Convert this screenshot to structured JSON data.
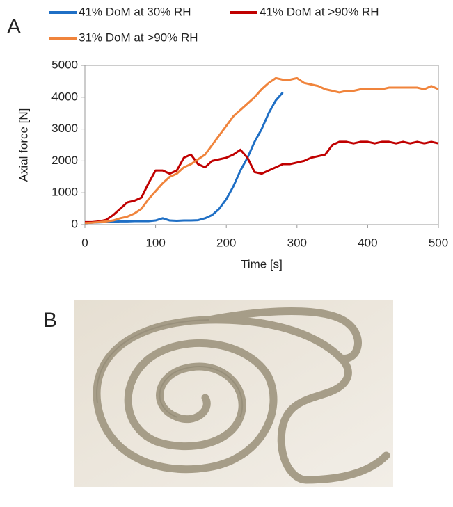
{
  "panel_labels": [
    "A",
    "B"
  ],
  "chart_data": {
    "type": "line",
    "x_label": "Time [s]",
    "y_label": "Axial force [N]",
    "x": [
      0,
      10,
      20,
      30,
      40,
      50,
      60,
      70,
      80,
      90,
      100,
      110,
      120,
      130,
      140,
      150,
      160,
      170,
      180,
      190,
      200,
      210,
      220,
      230,
      240,
      250,
      260,
      270,
      280,
      290,
      300,
      310,
      320,
      330,
      340,
      350,
      360,
      370,
      380,
      390,
      400,
      410,
      420,
      430,
      440,
      450,
      460,
      470,
      480,
      490,
      500
    ],
    "series": [
      {
        "name": "41% DoM at 30% RH",
        "color": "#1f6fc5",
        "values": [
          50,
          60,
          70,
          80,
          90,
          100,
          100,
          110,
          110,
          110,
          130,
          200,
          130,
          120,
          130,
          130,
          140,
          200,
          300,
          500,
          800,
          1200,
          1700,
          2100,
          2600,
          3000,
          3500,
          3900,
          4150,
          null,
          null,
          null,
          null,
          null,
          null,
          null,
          null,
          null,
          null,
          null,
          null,
          null,
          null,
          null,
          null,
          null,
          null,
          null,
          null,
          null,
          null
        ]
      },
      {
        "name": "41% DoM at >90% RH",
        "color": "#c00000",
        "values": [
          80,
          80,
          100,
          150,
          300,
          500,
          700,
          750,
          850,
          1300,
          1700,
          1700,
          1600,
          1700,
          2100,
          2200,
          1900,
          1800,
          2000,
          2050,
          2100,
          2200,
          2350,
          2100,
          1650,
          1600,
          1700,
          1800,
          1900,
          1900,
          1950,
          2000,
          2100,
          2150,
          2200,
          2500,
          2600,
          2600,
          2550,
          2600,
          2600,
          2550,
          2600,
          2600,
          2550,
          2600,
          2550,
          2600,
          2550,
          2600,
          2550
        ]
      },
      {
        "name": "31% DoM at >90% RH",
        "color": "#f0843c",
        "values": [
          50,
          60,
          80,
          100,
          130,
          200,
          250,
          350,
          500,
          800,
          1050,
          1300,
          1500,
          1600,
          1800,
          1900,
          2050,
          2200,
          2500,
          2800,
          3100,
          3400,
          3600,
          3800,
          4000,
          4250,
          4450,
          4600,
          4550,
          4550,
          4600,
          4450,
          4400,
          4350,
          4250,
          4200,
          4150,
          4200,
          4200,
          4250,
          4250,
          4250,
          4250,
          4300,
          4300,
          4300,
          4300,
          4300,
          4250,
          4350,
          4250
        ]
      }
    ],
    "xlim": [
      0,
      500
    ],
    "xticks": [
      0,
      100,
      200,
      300,
      400,
      500
    ],
    "ylim": [
      0,
      5000
    ],
    "yticks": [
      0,
      1000,
      2000,
      3000,
      4000,
      5000
    ]
  }
}
